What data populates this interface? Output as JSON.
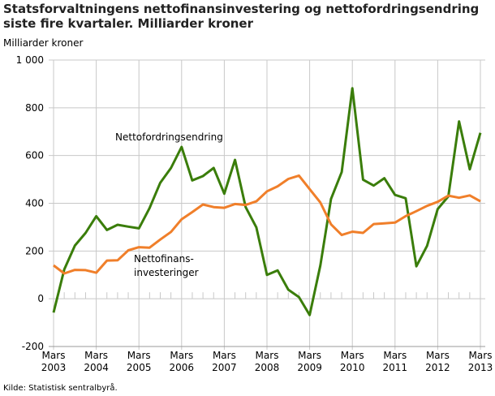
{
  "chart_data": {
    "type": "line",
    "title": "Statsforvaltningens nettofinansinvestering og nettofordringsendring siste fire kvartaler. Milliarder kroner",
    "ylabel": "Milliarder kroner",
    "source": "Kilde: Statistisk sentralbyrå.",
    "ylim": [
      -200,
      1000
    ],
    "yticks": [
      -200,
      0,
      200,
      400,
      600,
      800,
      1000
    ],
    "ytick_labels": [
      "-200",
      "0",
      "200",
      "400",
      "600",
      "800",
      "1 000"
    ],
    "xtick_labels": [
      [
        "Mars",
        "2003"
      ],
      [
        "Mars",
        "2004"
      ],
      [
        "Mars",
        "2005"
      ],
      [
        "Mars",
        "2006"
      ],
      [
        "Mars",
        "2007"
      ],
      [
        "Mars",
        "2008"
      ],
      [
        "Mars",
        "2009"
      ],
      [
        "Mars",
        "2010"
      ],
      [
        "Mars",
        "2011"
      ],
      [
        "Mars",
        "2012"
      ],
      [
        "Mars",
        "2013"
      ]
    ],
    "x_start": "Mars 2003",
    "x_end": "Mars 2013",
    "frequency": "quarterly",
    "grid": true,
    "series": [
      {
        "name": "Nettofordringsendring",
        "color": "#3a7d0a",
        "values": [
          -58,
          123,
          223,
          276,
          346,
          288,
          310,
          302,
          295,
          380,
          486,
          548,
          636,
          496,
          514,
          548,
          440,
          582,
          384,
          299,
          100,
          119,
          38,
          7,
          -68,
          140,
          418,
          531,
          882,
          499,
          474,
          505,
          435,
          421,
          136,
          222,
          376,
          429,
          743,
          542,
          695
        ]
      },
      {
        "name": "Nettofinans-investeringer",
        "label_lines": [
          "Nettofinans-",
          "investeringer"
        ],
        "color": "#f07f2a",
        "values": [
          140,
          106,
          121,
          120,
          109,
          160,
          161,
          203,
          216,
          214,
          248,
          280,
          333,
          363,
          395,
          384,
          381,
          397,
          393,
          408,
          450,
          471,
          502,
          516,
          459,
          403,
          312,
          267,
          281,
          276,
          313,
          316,
          319,
          346,
          367,
          389,
          406,
          432,
          423,
          433,
          408
        ]
      }
    ]
  }
}
